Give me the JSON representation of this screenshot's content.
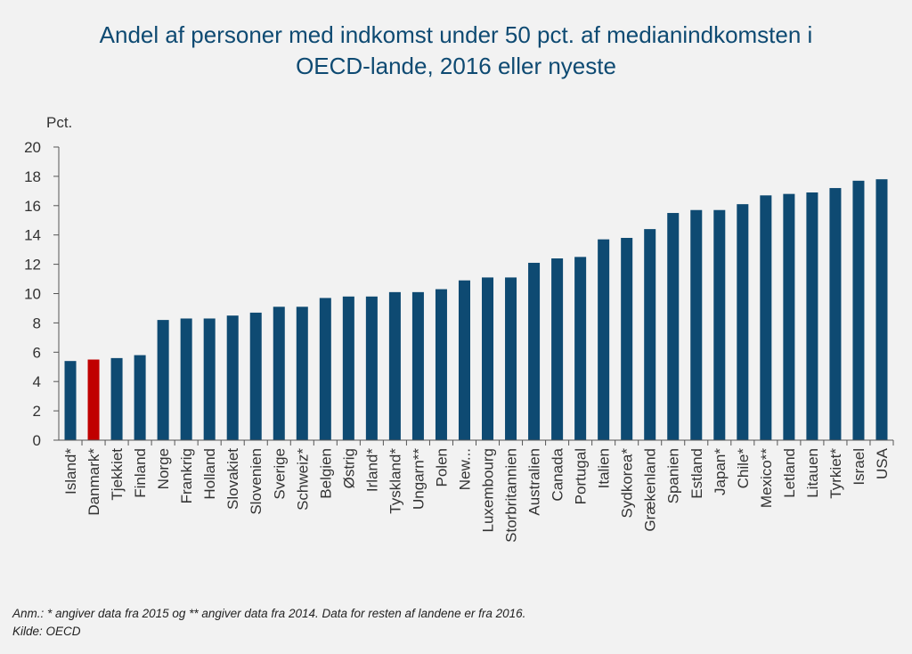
{
  "chart_data": {
    "type": "bar",
    "title_line1": "Andel af personer med indkomst under 50 pct. af medianindkomsten i",
    "title_line2": "OECD-lande, 2016 eller nyeste",
    "ylabel": "Pct.",
    "ylim": [
      0,
      20
    ],
    "yticks": [
      0,
      2,
      4,
      6,
      8,
      10,
      12,
      14,
      16,
      18,
      20
    ],
    "grid": false,
    "categories": [
      "Island*",
      "Danmark*",
      "Tjekkiet",
      "Finland",
      "Norge",
      "Frankrig",
      "Holland",
      "Slovakiet",
      "Slovenien",
      "Sverige",
      "Schweiz*",
      "Belgien",
      "Østrig",
      "Irland*",
      "Tyskland*",
      "Ungarn**",
      "Polen",
      "New...",
      "Luxembourg",
      "Storbritannien",
      "Australien",
      "Canada",
      "Portugal",
      "Italien",
      "Sydkorea*",
      "Grækenland",
      "Spanien",
      "Estland",
      "Japan*",
      "Chile*",
      "Mexico**",
      "Letland",
      "Litauen",
      "Tyrkiet*",
      "Israel",
      "USA"
    ],
    "values": [
      5.4,
      5.5,
      5.6,
      5.8,
      8.2,
      8.3,
      8.3,
      8.5,
      8.7,
      9.1,
      9.1,
      9.7,
      9.8,
      9.8,
      10.1,
      10.1,
      10.3,
      10.9,
      11.1,
      11.1,
      12.1,
      12.4,
      12.5,
      13.7,
      13.8,
      14.4,
      15.5,
      15.7,
      15.7,
      16.1,
      16.7,
      16.8,
      16.9,
      17.2,
      17.7,
      17.8
    ],
    "highlight_category": "Danmark*",
    "colors": {
      "bar": "#0e4a72",
      "highlight": "#c00000",
      "axis": "#555555",
      "title": "#0e4a72"
    }
  },
  "footer": {
    "note": "Anm.: * angiver data fra 2015 og ** angiver data fra 2014. Data for resten af landene er fra 2016.",
    "source": "Kilde: OECD"
  }
}
